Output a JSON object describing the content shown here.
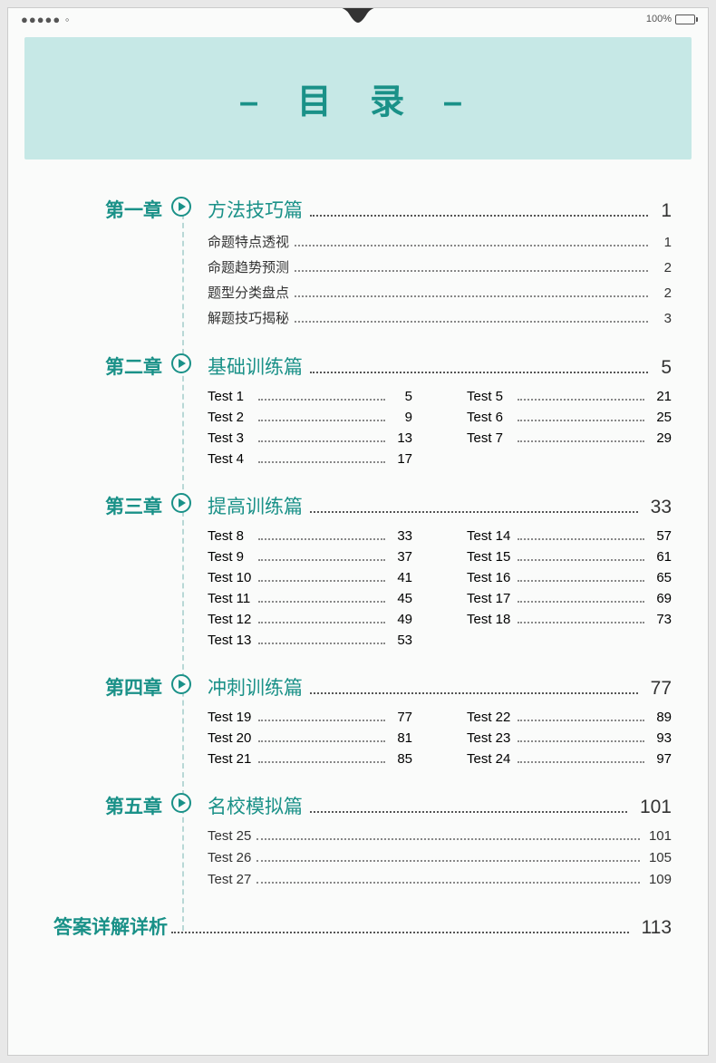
{
  "status": {
    "dots": "●●●●● ◦",
    "battery_pct": "100%"
  },
  "header": {
    "title": "– 目 录 –"
  },
  "colors": {
    "accent": "#1a9188",
    "banner_bg": "#c6e8e6",
    "text": "#333333",
    "dotline": "#888888",
    "page_bg": "#fafbfa"
  },
  "chapters": [
    {
      "label": "第一章",
      "title": "方法技巧篇",
      "page": "1",
      "subs": [
        {
          "label": "命题特点透视",
          "page": "1"
        },
        {
          "label": "命题趋势预测",
          "page": "2"
        },
        {
          "label": "题型分类盘点",
          "page": "2"
        },
        {
          "label": "解题技巧揭秘",
          "page": "3"
        }
      ]
    },
    {
      "label": "第二章",
      "title": "基础训练篇",
      "page": "5",
      "tests_left": [
        {
          "label": "Test 1",
          "page": "5"
        },
        {
          "label": "Test 2",
          "page": "9"
        },
        {
          "label": "Test 3",
          "page": "13"
        },
        {
          "label": "Test 4",
          "page": "17"
        }
      ],
      "tests_right": [
        {
          "label": "Test 5",
          "page": "21"
        },
        {
          "label": "Test 6",
          "page": "25"
        },
        {
          "label": "Test 7",
          "page": "29"
        }
      ]
    },
    {
      "label": "第三章",
      "title": "提高训练篇",
      "page": "33",
      "tests_left": [
        {
          "label": "Test 8",
          "page": "33"
        },
        {
          "label": "Test 9",
          "page": "37"
        },
        {
          "label": "Test 10",
          "page": "41"
        },
        {
          "label": "Test 11",
          "page": "45"
        },
        {
          "label": "Test 12",
          "page": "49"
        },
        {
          "label": "Test 13",
          "page": "53"
        }
      ],
      "tests_right": [
        {
          "label": "Test 14",
          "page": "57"
        },
        {
          "label": "Test 15",
          "page": "61"
        },
        {
          "label": "Test 16",
          "page": "65"
        },
        {
          "label": "Test 17",
          "page": "69"
        },
        {
          "label": "Test 18",
          "page": "73"
        }
      ]
    },
    {
      "label": "第四章",
      "title": "冲刺训练篇",
      "page": "77",
      "tests_left": [
        {
          "label": "Test 19",
          "page": "77"
        },
        {
          "label": "Test 20",
          "page": "81"
        },
        {
          "label": "Test 21",
          "page": "85"
        }
      ],
      "tests_right": [
        {
          "label": "Test 22",
          "page": "89"
        },
        {
          "label": "Test 23",
          "page": "93"
        },
        {
          "label": "Test 24",
          "page": "97"
        }
      ]
    },
    {
      "label": "第五章",
      "title": "名校模拟篇",
      "page": "101",
      "subs": [
        {
          "label": "Test 25",
          "page": "101"
        },
        {
          "label": "Test 26",
          "page": "105"
        },
        {
          "label": "Test 27",
          "page": "109"
        }
      ]
    }
  ],
  "answers": {
    "label": "答案详解详析",
    "page": "113"
  }
}
